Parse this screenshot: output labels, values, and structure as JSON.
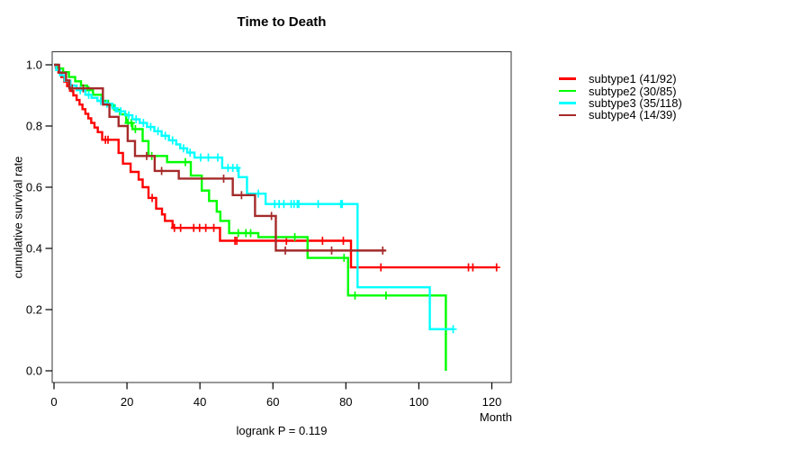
{
  "figure": {
    "title": "Time to Death",
    "xlabel": "Month",
    "ylabel": "cumulative survival rate",
    "footnote": "logrank P = 0.119"
  },
  "chart_data": {
    "type": "line",
    "subtype": "kaplan-meier-step-curves",
    "title": "Time to Death",
    "xlabel": "Month",
    "ylabel": "cumulative survival rate",
    "annotation": "logrank P = 0.119",
    "grid": false,
    "legend_position": "right-outside",
    "xlim": [
      0,
      125
    ],
    "ylim": [
      0,
      1
    ],
    "x_ticks": [
      0,
      20,
      40,
      60,
      80,
      100,
      120
    ],
    "y_ticks": [
      0,
      0.2,
      0.4,
      0.6,
      0.8,
      1.0
    ],
    "y_tick_labels": [
      "0.0",
      "0.2",
      "0.4",
      "0.6",
      "0.8",
      "1.0"
    ],
    "series": [
      {
        "name": "subtype1 (41/92)",
        "color": "#FF0000",
        "end": 121.3,
        "steps": [
          [
            0,
            1.0
          ],
          [
            0.5,
            0.99
          ],
          [
            1.2,
            0.975
          ],
          [
            2.0,
            0.96
          ],
          [
            2.8,
            0.945
          ],
          [
            3.6,
            0.93
          ],
          [
            4.4,
            0.915
          ],
          [
            5.3,
            0.9
          ],
          [
            6.2,
            0.885
          ],
          [
            7.0,
            0.87
          ],
          [
            7.8,
            0.855
          ],
          [
            8.6,
            0.84
          ],
          [
            9.4,
            0.825
          ],
          [
            10.2,
            0.81
          ],
          [
            11.1,
            0.795
          ],
          [
            12.0,
            0.78
          ],
          [
            13.2,
            0.755
          ],
          [
            17.7,
            0.712
          ],
          [
            18.9,
            0.677
          ],
          [
            21.0,
            0.65
          ],
          [
            23.2,
            0.625
          ],
          [
            24.3,
            0.6
          ],
          [
            25.9,
            0.565
          ],
          [
            28.0,
            0.53
          ],
          [
            29.6,
            0.511
          ],
          [
            30.4,
            0.49
          ],
          [
            32.5,
            0.467
          ],
          [
            45.5,
            0.425
          ],
          [
            81.4,
            0.338
          ]
        ],
        "censors": [
          14.1,
          14.8,
          26.9,
          33.0,
          34.7,
          38.3,
          39.9,
          41.6,
          43.8,
          49.6,
          50.1,
          63.7,
          73.6,
          79.3,
          89.6,
          113.6,
          114.8,
          121.3
        ]
      },
      {
        "name": "subtype2 (30/85)",
        "color": "#00FF00",
        "end": 107.4,
        "steps": [
          [
            0,
            1.0
          ],
          [
            0.8,
            0.988
          ],
          [
            2.5,
            0.976
          ],
          [
            4.1,
            0.96
          ],
          [
            5.8,
            0.946
          ],
          [
            7.4,
            0.932
          ],
          [
            9.1,
            0.917
          ],
          [
            10.7,
            0.902
          ],
          [
            13.2,
            0.882
          ],
          [
            14.8,
            0.868
          ],
          [
            16.5,
            0.853
          ],
          [
            18.1,
            0.838
          ],
          [
            19.8,
            0.81
          ],
          [
            21.5,
            0.79
          ],
          [
            24.3,
            0.751
          ],
          [
            25.9,
            0.702
          ],
          [
            31.0,
            0.682
          ],
          [
            37.5,
            0.638
          ],
          [
            40.5,
            0.589
          ],
          [
            42.5,
            0.555
          ],
          [
            44.6,
            0.52
          ],
          [
            45.6,
            0.49
          ],
          [
            48.0,
            0.45
          ],
          [
            56.0,
            0.437
          ],
          [
            69.5,
            0.369
          ],
          [
            80.6,
            0.246
          ],
          [
            107.4,
            0.0
          ]
        ],
        "censors": [
          9.5,
          13.5,
          20.3,
          21.2,
          22.3,
          26.8,
          36.0,
          50.5,
          52.6,
          53.9,
          66.0,
          79.5,
          82.5,
          91.0
        ]
      },
      {
        "name": "subtype3 (35/118)",
        "color": "#00FFFF",
        "end": 109.4,
        "steps": [
          [
            0,
            1.0
          ],
          [
            0.6,
            0.983
          ],
          [
            1.65,
            0.966
          ],
          [
            2.9,
            0.948
          ],
          [
            4.5,
            0.932
          ],
          [
            6.2,
            0.917
          ],
          [
            8.6,
            0.902
          ],
          [
            10.3,
            0.892
          ],
          [
            11.9,
            0.882
          ],
          [
            13.6,
            0.873
          ],
          [
            16.0,
            0.858
          ],
          [
            17.3,
            0.848
          ],
          [
            19.5,
            0.835
          ],
          [
            21.5,
            0.822
          ],
          [
            23.5,
            0.81
          ],
          [
            25.5,
            0.797
          ],
          [
            27.5,
            0.783
          ],
          [
            29.5,
            0.768
          ],
          [
            31.5,
            0.753
          ],
          [
            33.5,
            0.74
          ],
          [
            34.6,
            0.727
          ],
          [
            36.5,
            0.713
          ],
          [
            38.5,
            0.697
          ],
          [
            46.1,
            0.663
          ],
          [
            50.6,
            0.633
          ],
          [
            52.9,
            0.579
          ],
          [
            58.0,
            0.545
          ],
          [
            83.2,
            0.273
          ],
          [
            103.0,
            0.136
          ]
        ],
        "censors": [
          7.2,
          9.5,
          12.8,
          14.5,
          16.8,
          18.3,
          20.5,
          22.5,
          24.5,
          26.5,
          28.5,
          30.5,
          32.5,
          35.5,
          37.3,
          40.2,
          42.3,
          44.9,
          47.7,
          49.0,
          50.2,
          56.0,
          60.5,
          61.7,
          63.0,
          65.0,
          65.8,
          66.7,
          67.1,
          72.4,
          78.6,
          79.0,
          109.4
        ]
      },
      {
        "name": "subtype4 (14/39)",
        "color": "#A52A2A",
        "end": 90.9,
        "steps": [
          [
            0,
            1.0
          ],
          [
            1.4,
            0.974
          ],
          [
            3.3,
            0.949
          ],
          [
            4.2,
            0.923
          ],
          [
            13.4,
            0.87
          ],
          [
            15.2,
            0.83
          ],
          [
            17.7,
            0.8
          ],
          [
            20.2,
            0.751
          ],
          [
            22.2,
            0.702
          ],
          [
            27.6,
            0.653
          ],
          [
            34.2,
            0.628
          ],
          [
            49.0,
            0.574
          ],
          [
            55.1,
            0.506
          ],
          [
            60.8,
            0.393
          ]
        ],
        "censors": [
          5.0,
          8.0,
          25.4,
          29.5,
          46.5,
          51.4,
          59.6,
          63.4,
          76.1,
          90.1
        ]
      }
    ]
  }
}
